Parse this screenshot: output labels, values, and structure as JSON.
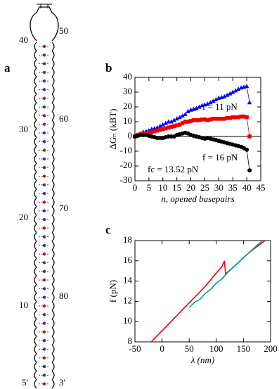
{
  "panel_labels": [
    "a",
    "b",
    "c"
  ],
  "hairpin": {
    "left_labels": [
      "40",
      "30",
      "20",
      "10",
      "5'"
    ],
    "right_labels": [
      "50",
      "60",
      "70",
      "80",
      "3'"
    ]
  },
  "chart_data": [
    {
      "type": "line",
      "x_label": "n, opened basepairs",
      "y_label": "ΔGₙ (kBT)",
      "annotations": [
        "f = 11 pN",
        "f = 16 pN",
        "fc = 13.52 pN"
      ],
      "x": [
        0,
        1,
        2,
        3,
        4,
        5,
        6,
        7,
        8,
        9,
        10,
        11,
        12,
        13,
        14,
        15,
        16,
        17,
        18,
        19,
        20,
        21,
        22,
        23,
        24,
        25,
        26,
        27,
        28,
        29,
        30,
        31,
        32,
        33,
        34,
        35,
        36,
        37,
        38,
        39,
        40,
        41
      ],
      "series": [
        {
          "color": "#0000ff",
          "marker": "triangle",
          "values": [
            0,
            1,
            2,
            3,
            3.5,
            4,
            5,
            5.5,
            6,
            7,
            8,
            9,
            10,
            10,
            11,
            12,
            13,
            14,
            15,
            17,
            18,
            18.5,
            19,
            20,
            21,
            21.5,
            22,
            23,
            24,
            25,
            26,
            26.5,
            27,
            28,
            29,
            30,
            31,
            32,
            33,
            33.5,
            34,
            23
          ]
        },
        {
          "color": "#ee0000",
          "marker": "square",
          "values": [
            0,
            1,
            1.5,
            2,
            2,
            2.5,
            3,
            3.5,
            4,
            4.5,
            5,
            5.5,
            6,
            6.5,
            7,
            7.5,
            8,
            9,
            10,
            10,
            10.5,
            11,
            11,
            11,
            11.5,
            11.5,
            11,
            11.5,
            12,
            12,
            12,
            12,
            12,
            12.5,
            12.5,
            13,
            13,
            13,
            13.5,
            13.5,
            13,
            0
          ]
        },
        {
          "color": "#000000",
          "marker": "circle",
          "values": [
            0,
            0.5,
            1,
            1,
            1,
            0.5,
            0,
            -0.5,
            -1,
            -1,
            -1,
            -0.5,
            0,
            0,
            0,
            1,
            1.5,
            2,
            2.5,
            2,
            1,
            0.5,
            0,
            -0.5,
            -1,
            -1.5,
            -1,
            -1.5,
            -2,
            -2.5,
            -3,
            -3.5,
            -4,
            -4.5,
            -5,
            -5.5,
            -6,
            -6.5,
            -7,
            -8,
            -9,
            -23
          ]
        }
      ],
      "xlim": [
        0,
        45
      ],
      "xticks": [
        0,
        5,
        10,
        15,
        20,
        25,
        30,
        35,
        40,
        45
      ],
      "ylim": [
        -30,
        40
      ],
      "yticks": [
        -30,
        -20,
        -10,
        0,
        10,
        20,
        30,
        40
      ]
    },
    {
      "type": "line",
      "x_label": "λ (nm)",
      "y_label": "f (pN)",
      "series": [
        {
          "color": "#ee0000",
          "x": [
            -20,
            0,
            20,
            40,
            60,
            80,
            100,
            110,
            115,
            117,
            140,
            160,
            190
          ],
          "values": [
            8,
            9.1,
            10.2,
            11.3,
            12.4,
            13.5,
            14.8,
            15.4,
            16,
            14.7,
            15.8,
            16.8,
            18
          ]
        },
        {
          "color": "#009999",
          "x": [
            50,
            60,
            70,
            80,
            90,
            100,
            110,
            120,
            140,
            160,
            185
          ],
          "values": [
            11.4,
            11.9,
            12.2,
            12.8,
            13.2,
            13.8,
            14.2,
            14.8,
            15.8,
            16.8,
            18
          ]
        }
      ],
      "xlim": [
        -50,
        200
      ],
      "xticks": [
        -50,
        0,
        50,
        100,
        150,
        200
      ],
      "ylim": [
        8,
        18
      ],
      "yticks": [
        8,
        10,
        12,
        14,
        16,
        18
      ]
    }
  ]
}
